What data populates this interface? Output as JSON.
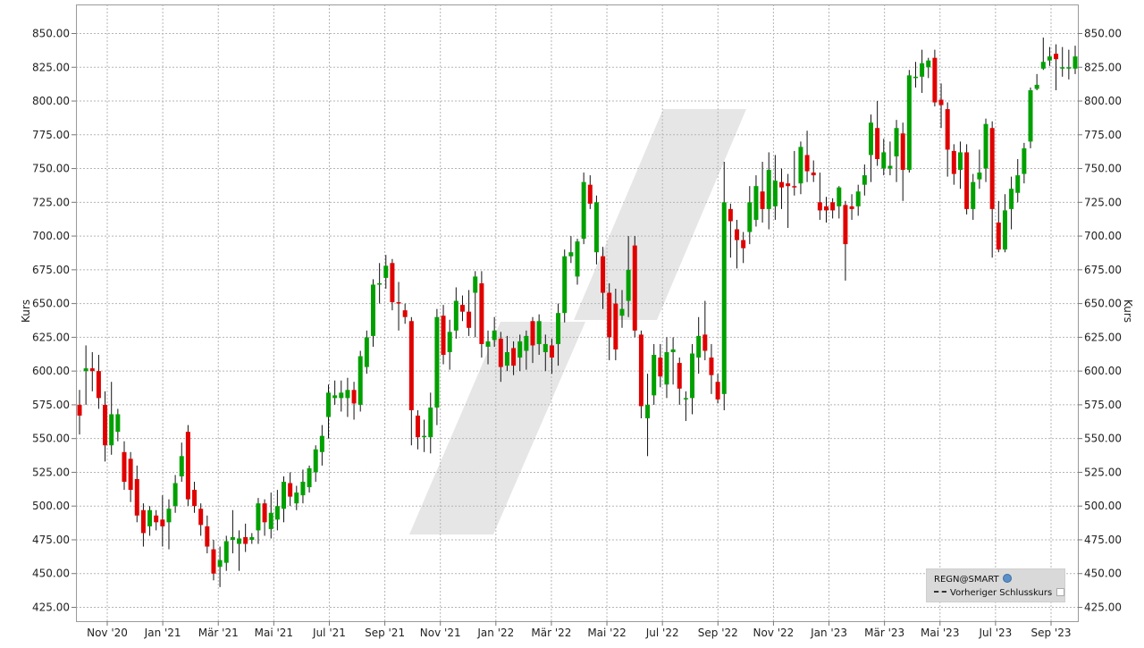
{
  "chart_data": {
    "type": "candlestick",
    "ylabel_left": "Kurs",
    "ylabel_right": "Kurs",
    "ylim": [
      415,
      860
    ],
    "y_ticks": [
      "850.00",
      "825.00",
      "800.00",
      "775.00",
      "750.00",
      "725.00",
      "700.00",
      "675.00",
      "650.00",
      "625.00",
      "600.00",
      "575.00",
      "550.00",
      "525.00",
      "500.00",
      "475.00",
      "450.00",
      "425.00"
    ],
    "x_ticks": [
      "Nov '20",
      "Jan '21",
      "Mär '21",
      "Mai '21",
      "Jul '21",
      "Sep '21",
      "Nov '21",
      "Jan '22",
      "Mär '22",
      "Mai '22",
      "Jul '22",
      "Sep '22",
      "Nov '22",
      "Jan '23",
      "Mär '23",
      "Mai '23",
      "Jul '23",
      "Sep '23"
    ],
    "grid": true,
    "up_color": "#00a000",
    "down_color": "#e00000",
    "watermark_color": "#e6e6e6",
    "legend": {
      "position": "bottom-right",
      "symbol": "REGN@SMART",
      "line_label": "Vorheriger Schlusskurs"
    },
    "candles": [
      {
        "o": 575,
        "c": 567,
        "h": 586,
        "l": 553
      },
      {
        "o": 600,
        "c": 602,
        "h": 619,
        "l": 575
      },
      {
        "o": 602,
        "c": 600,
        "h": 614,
        "l": 585
      },
      {
        "o": 600,
        "c": 580,
        "h": 612,
        "l": 572
      },
      {
        "o": 575,
        "c": 545,
        "h": 585,
        "l": 533
      },
      {
        "o": 545,
        "c": 568,
        "h": 592,
        "l": 538
      },
      {
        "o": 555,
        "c": 568,
        "h": 572,
        "l": 548
      },
      {
        "o": 540,
        "c": 518,
        "h": 548,
        "l": 512
      },
      {
        "o": 535,
        "c": 512,
        "h": 540,
        "l": 503
      },
      {
        "o": 520,
        "c": 493,
        "h": 530,
        "l": 488
      },
      {
        "o": 497,
        "c": 480,
        "h": 502,
        "l": 470
      },
      {
        "o": 485,
        "c": 497,
        "h": 500,
        "l": 478
      },
      {
        "o": 493,
        "c": 488,
        "h": 497,
        "l": 482
      },
      {
        "o": 490,
        "c": 485,
        "h": 508,
        "l": 470
      },
      {
        "o": 488,
        "c": 498,
        "h": 505,
        "l": 468
      },
      {
        "o": 500,
        "c": 517,
        "h": 523,
        "l": 495
      },
      {
        "o": 522,
        "c": 537,
        "h": 547,
        "l": 518
      },
      {
        "o": 555,
        "c": 505,
        "h": 560,
        "l": 500
      },
      {
        "o": 512,
        "c": 500,
        "h": 518,
        "l": 495
      },
      {
        "o": 498,
        "c": 486,
        "h": 502,
        "l": 478
      },
      {
        "o": 485,
        "c": 470,
        "h": 493,
        "l": 465
      },
      {
        "o": 468,
        "c": 450,
        "h": 475,
        "l": 445
      },
      {
        "o": 455,
        "c": 460,
        "h": 470,
        "l": 440
      },
      {
        "o": 458,
        "c": 474,
        "h": 478,
        "l": 452
      },
      {
        "o": 475,
        "c": 477,
        "h": 497,
        "l": 465
      },
      {
        "o": 472,
        "c": 476,
        "h": 482,
        "l": 452
      },
      {
        "o": 477,
        "c": 472,
        "h": 487,
        "l": 466
      },
      {
        "o": 475,
        "c": 477,
        "h": 480,
        "l": 472
      },
      {
        "o": 482,
        "c": 502,
        "h": 506,
        "l": 472
      },
      {
        "o": 502,
        "c": 488,
        "h": 505,
        "l": 478
      },
      {
        "o": 483,
        "c": 495,
        "h": 510,
        "l": 476
      },
      {
        "o": 490,
        "c": 500,
        "h": 512,
        "l": 482
      },
      {
        "o": 498,
        "c": 518,
        "h": 522,
        "l": 488
      },
      {
        "o": 517,
        "c": 507,
        "h": 525,
        "l": 500
      },
      {
        "o": 502,
        "c": 510,
        "h": 515,
        "l": 497
      },
      {
        "o": 508,
        "c": 518,
        "h": 527,
        "l": 502
      },
      {
        "o": 514,
        "c": 528,
        "h": 530,
        "l": 510
      },
      {
        "o": 525,
        "c": 542,
        "h": 545,
        "l": 518
      },
      {
        "o": 540,
        "c": 552,
        "h": 560,
        "l": 530
      },
      {
        "o": 566,
        "c": 584,
        "h": 590,
        "l": 550
      },
      {
        "o": 580,
        "c": 582,
        "h": 593,
        "l": 575
      },
      {
        "o": 580,
        "c": 584,
        "h": 593,
        "l": 570
      },
      {
        "o": 580,
        "c": 586,
        "h": 595,
        "l": 566
      },
      {
        "o": 586,
        "c": 576,
        "h": 592,
        "l": 564
      },
      {
        "o": 575,
        "c": 611,
        "h": 615,
        "l": 570
      },
      {
        "o": 603,
        "c": 625,
        "h": 630,
        "l": 598
      },
      {
        "o": 626,
        "c": 664,
        "h": 668,
        "l": 618
      },
      {
        "o": 664,
        "c": 665,
        "h": 680,
        "l": 650
      },
      {
        "o": 669,
        "c": 678,
        "h": 686,
        "l": 661
      },
      {
        "o": 680,
        "c": 651,
        "h": 683,
        "l": 645
      },
      {
        "o": 651,
        "c": 650,
        "h": 666,
        "l": 630
      },
      {
        "o": 645,
        "c": 640,
        "h": 650,
        "l": 635
      },
      {
        "o": 637,
        "c": 571,
        "h": 640,
        "l": 545
      },
      {
        "o": 567,
        "c": 551,
        "h": 571,
        "l": 542
      },
      {
        "o": 552,
        "c": 552,
        "h": 564,
        "l": 540
      },
      {
        "o": 551,
        "c": 573,
        "h": 584,
        "l": 539
      },
      {
        "o": 573,
        "c": 640,
        "h": 646,
        "l": 560
      },
      {
        "o": 641,
        "c": 612,
        "h": 649,
        "l": 605
      },
      {
        "o": 614,
        "c": 629,
        "h": 638,
        "l": 601
      },
      {
        "o": 630,
        "c": 652,
        "h": 662,
        "l": 624
      },
      {
        "o": 649,
        "c": 644,
        "h": 656,
        "l": 637
      },
      {
        "o": 644,
        "c": 632,
        "h": 660,
        "l": 626
      },
      {
        "o": 658,
        "c": 670,
        "h": 674,
        "l": 625
      },
      {
        "o": 665,
        "c": 620,
        "h": 674,
        "l": 610
      },
      {
        "o": 618,
        "c": 622,
        "h": 630,
        "l": 605
      },
      {
        "o": 623,
        "c": 630,
        "h": 640,
        "l": 618
      },
      {
        "o": 624,
        "c": 603,
        "h": 629,
        "l": 592
      },
      {
        "o": 604,
        "c": 614,
        "h": 626,
        "l": 600
      },
      {
        "o": 617,
        "c": 604,
        "h": 622,
        "l": 597
      },
      {
        "o": 610,
        "c": 622,
        "h": 627,
        "l": 600
      },
      {
        "o": 615,
        "c": 626,
        "h": 630,
        "l": 601
      },
      {
        "o": 637,
        "c": 619,
        "h": 640,
        "l": 606
      },
      {
        "o": 620,
        "c": 637,
        "h": 642,
        "l": 612
      },
      {
        "o": 614,
        "c": 620,
        "h": 627,
        "l": 600
      },
      {
        "o": 619,
        "c": 610,
        "h": 624,
        "l": 598
      },
      {
        "o": 620,
        "c": 643,
        "h": 650,
        "l": 604
      },
      {
        "o": 643,
        "c": 685,
        "h": 690,
        "l": 636
      },
      {
        "o": 685,
        "c": 688,
        "h": 700,
        "l": 680
      },
      {
        "o": 670,
        "c": 696,
        "h": 698,
        "l": 664
      },
      {
        "o": 698,
        "c": 740,
        "h": 747,
        "l": 694
      },
      {
        "o": 738,
        "c": 724,
        "h": 745,
        "l": 720
      },
      {
        "o": 688,
        "c": 725,
        "h": 730,
        "l": 679
      },
      {
        "o": 685,
        "c": 658,
        "h": 692,
        "l": 646
      },
      {
        "o": 658,
        "c": 625,
        "h": 665,
        "l": 608
      },
      {
        "o": 650,
        "c": 616,
        "h": 661,
        "l": 608
      },
      {
        "o": 641,
        "c": 646,
        "h": 660,
        "l": 632
      },
      {
        "o": 652,
        "c": 675,
        "h": 700,
        "l": 640
      },
      {
        "o": 693,
        "c": 630,
        "h": 700,
        "l": 625
      },
      {
        "o": 627,
        "c": 574,
        "h": 630,
        "l": 565
      },
      {
        "o": 565,
        "c": 575,
        "h": 598,
        "l": 537
      },
      {
        "o": 582,
        "c": 612,
        "h": 620,
        "l": 575
      },
      {
        "o": 610,
        "c": 596,
        "h": 620,
        "l": 588
      },
      {
        "o": 590,
        "c": 614,
        "h": 625,
        "l": 580
      },
      {
        "o": 614,
        "c": 616,
        "h": 625,
        "l": 590
      },
      {
        "o": 606,
        "c": 587,
        "h": 610,
        "l": 575
      },
      {
        "o": 580,
        "c": 580,
        "h": 585,
        "l": 563
      },
      {
        "o": 580,
        "c": 613,
        "h": 620,
        "l": 568
      },
      {
        "o": 610,
        "c": 626,
        "h": 640,
        "l": 598
      },
      {
        "o": 627,
        "c": 615,
        "h": 652,
        "l": 608
      },
      {
        "o": 610,
        "c": 597,
        "h": 620,
        "l": 583
      },
      {
        "o": 592,
        "c": 579,
        "h": 598,
        "l": 576
      },
      {
        "o": 583,
        "c": 725,
        "h": 755,
        "l": 571
      },
      {
        "o": 720,
        "c": 711,
        "h": 724,
        "l": 684
      },
      {
        "o": 705,
        "c": 697,
        "h": 712,
        "l": 676
      },
      {
        "o": 697,
        "c": 691,
        "h": 703,
        "l": 680
      },
      {
        "o": 703,
        "c": 725,
        "h": 737,
        "l": 694
      },
      {
        "o": 712,
        "c": 737,
        "h": 745,
        "l": 707
      },
      {
        "o": 733,
        "c": 720,
        "h": 755,
        "l": 710
      },
      {
        "o": 720,
        "c": 749,
        "h": 762,
        "l": 705
      },
      {
        "o": 722,
        "c": 741,
        "h": 760,
        "l": 712
      },
      {
        "o": 740,
        "c": 736,
        "h": 750,
        "l": 720
      },
      {
        "o": 739,
        "c": 737,
        "h": 746,
        "l": 706
      },
      {
        "o": 737,
        "c": 736,
        "h": 763,
        "l": 730
      },
      {
        "o": 739,
        "c": 766,
        "h": 770,
        "l": 731
      },
      {
        "o": 760,
        "c": 748,
        "h": 778,
        "l": 740
      },
      {
        "o": 747,
        "c": 745,
        "h": 756,
        "l": 740
      },
      {
        "o": 725,
        "c": 719,
        "h": 747,
        "l": 712
      },
      {
        "o": 722,
        "c": 719,
        "h": 729,
        "l": 710
      },
      {
        "o": 725,
        "c": 719,
        "h": 728,
        "l": 713
      },
      {
        "o": 722,
        "c": 736,
        "h": 737,
        "l": 713
      },
      {
        "o": 723,
        "c": 694,
        "h": 726,
        "l": 667
      },
      {
        "o": 722,
        "c": 720,
        "h": 731,
        "l": 712
      },
      {
        "o": 722,
        "c": 733,
        "h": 738,
        "l": 715
      },
      {
        "o": 738,
        "c": 745,
        "h": 753,
        "l": 730
      },
      {
        "o": 760,
        "c": 784,
        "h": 790,
        "l": 740
      },
      {
        "o": 780,
        "c": 757,
        "h": 800,
        "l": 752
      },
      {
        "o": 750,
        "c": 762,
        "h": 772,
        "l": 745
      },
      {
        "o": 750,
        "c": 752,
        "h": 770,
        "l": 745
      },
      {
        "o": 759,
        "c": 780,
        "h": 786,
        "l": 740
      },
      {
        "o": 776,
        "c": 749,
        "h": 784,
        "l": 726
      },
      {
        "o": 749,
        "c": 819,
        "h": 823,
        "l": 747
      },
      {
        "o": 817,
        "c": 818,
        "h": 829,
        "l": 810
      },
      {
        "o": 818,
        "c": 828,
        "h": 838,
        "l": 806
      },
      {
        "o": 825,
        "c": 830,
        "h": 832,
        "l": 817
      },
      {
        "o": 832,
        "c": 799,
        "h": 838,
        "l": 796
      },
      {
        "o": 801,
        "c": 797,
        "h": 813,
        "l": 780
      },
      {
        "o": 794,
        "c": 764,
        "h": 799,
        "l": 744
      },
      {
        "o": 763,
        "c": 746,
        "h": 768,
        "l": 738
      },
      {
        "o": 749,
        "c": 762,
        "h": 770,
        "l": 735
      },
      {
        "o": 762,
        "c": 720,
        "h": 768,
        "l": 716
      },
      {
        "o": 720,
        "c": 740,
        "h": 746,
        "l": 712
      },
      {
        "o": 742,
        "c": 747,
        "h": 764,
        "l": 735
      },
      {
        "o": 750,
        "c": 783,
        "h": 787,
        "l": 740
      },
      {
        "o": 780,
        "c": 720,
        "h": 785,
        "l": 684
      },
      {
        "o": 710,
        "c": 690,
        "h": 726,
        "l": 688
      },
      {
        "o": 690,
        "c": 719,
        "h": 731,
        "l": 688
      },
      {
        "o": 720,
        "c": 735,
        "h": 744,
        "l": 705
      },
      {
        "o": 732,
        "c": 745,
        "h": 757,
        "l": 725
      },
      {
        "o": 746,
        "c": 765,
        "h": 769,
        "l": 739
      },
      {
        "o": 770,
        "c": 808,
        "h": 810,
        "l": 765
      },
      {
        "o": 809,
        "c": 812,
        "h": 820,
        "l": 808
      },
      {
        "o": 824,
        "c": 829,
        "h": 847,
        "l": 823
      },
      {
        "o": 830,
        "c": 833,
        "h": 840,
        "l": 826
      },
      {
        "o": 835,
        "c": 831,
        "h": 842,
        "l": 808
      },
      {
        "o": 825,
        "c": 825,
        "h": 840,
        "l": 818
      },
      {
        "o": 825,
        "c": 825,
        "h": 838,
        "l": 816
      },
      {
        "o": 824,
        "c": 833,
        "h": 841,
        "l": 820
      }
    ]
  }
}
